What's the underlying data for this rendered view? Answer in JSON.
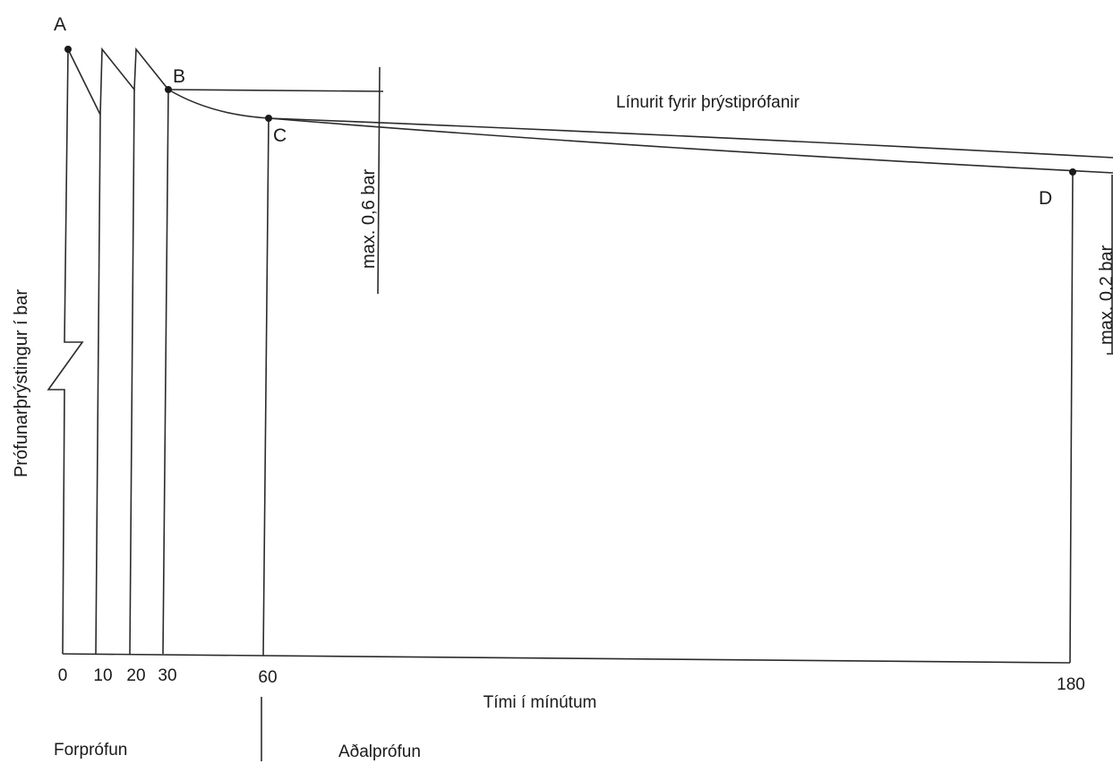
{
  "chart_data": {
    "type": "line",
    "title": "Línurit fyrir þrýstiprófanir",
    "xlabel": "Tími í mínútum",
    "ylabel": "Prófunarþrýstingur í bar",
    "x_ticks": [
      "0",
      "10",
      "20",
      "30",
      "60",
      "180"
    ],
    "phases": [
      "Forprófun",
      "Aðalprófun"
    ],
    "points": [
      {
        "label": "A",
        "x": 0
      },
      {
        "label": "B",
        "x": 30
      },
      {
        "label": "C",
        "x": 60
      },
      {
        "label": "D",
        "x": 180
      }
    ],
    "annotations": [
      "max. 0,6 bar",
      "max. 0,2 bar"
    ],
    "grid": false,
    "legend": "none"
  }
}
